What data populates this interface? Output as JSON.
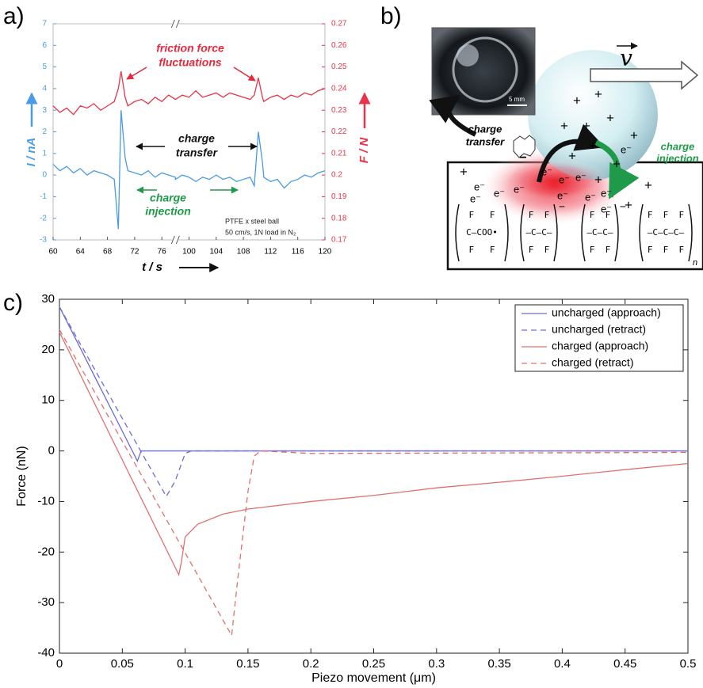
{
  "panel_labels": [
    "a)",
    "b)",
    "c)"
  ],
  "chart_data": [
    {
      "type": "line",
      "x": [
        60,
        61,
        62,
        63,
        64,
        65,
        66,
        67,
        68,
        69,
        69.6,
        70,
        70.6,
        71,
        72,
        73,
        74,
        75,
        76,
        77,
        78,
        98,
        99,
        100,
        101,
        102,
        103,
        104,
        105,
        106,
        107,
        108,
        109,
        109.6,
        110.2,
        110.8,
        111,
        112,
        113,
        114,
        115,
        116,
        117,
        118,
        119,
        120
      ],
      "xlim": [
        60,
        120
      ],
      "x_break": [
        78,
        98
      ],
      "xticks": [
        60,
        64,
        68,
        72,
        76,
        100,
        104,
        108,
        112,
        116,
        120
      ],
      "ylim": [
        -3,
        7
      ],
      "yticks": [
        -3,
        -2,
        -1,
        0,
        1,
        2,
        3,
        4,
        5,
        6,
        7
      ],
      "y2lim": [
        0.17,
        0.27
      ],
      "y2ticks": [
        0.17,
        0.18,
        0.19,
        0.2,
        0.21,
        0.22,
        0.23,
        0.24,
        0.25,
        0.26,
        0.27
      ],
      "xlabel": "t / s",
      "ylabel": "I / nA",
      "y2label": "F / N",
      "series": [
        {
          "axis": "y2",
          "color": "#e8334a",
          "values": [
            0.232,
            0.229,
            0.231,
            0.228,
            0.232,
            0.231,
            0.233,
            0.23,
            0.232,
            0.234,
            0.24,
            0.248,
            0.236,
            0.232,
            0.234,
            0.235,
            0.233,
            0.236,
            0.234,
            0.237,
            0.235,
            0.235,
            0.237,
            0.236,
            0.239,
            0.236,
            0.237,
            0.238,
            0.236,
            0.238,
            0.237,
            0.236,
            0.235,
            0.237,
            0.245,
            0.236,
            0.234,
            0.236,
            0.237,
            0.235,
            0.237,
            0.236,
            0.238,
            0.237,
            0.239,
            0.24
          ]
        },
        {
          "color": "#4a9be6",
          "values": [
            0.5,
            0.2,
            0.4,
            0.1,
            0.3,
            0.0,
            0.2,
            0.1,
            0.0,
            -0.2,
            -2.5,
            3.0,
            0.8,
            0.2,
            0.1,
            0.0,
            0.2,
            -0.1,
            0.1,
            0.0,
            -0.1,
            -0.2,
            0.0,
            -0.1,
            -0.3,
            -0.1,
            -0.2,
            0.0,
            -0.2,
            -0.1,
            -0.3,
            -0.2,
            -0.1,
            -0.5,
            2.0,
            0.6,
            -0.1,
            -0.3,
            -0.2,
            -0.6,
            -0.3,
            -0.2,
            0.0,
            -0.1,
            0.1,
            0.2
          ]
        }
      ],
      "annotations": [
        {
          "text": "friction force",
          "color": "#e8283c"
        },
        {
          "text": "fluctuations",
          "color": "#e8283c"
        },
        {
          "text": "charge",
          "color": "#111111"
        },
        {
          "text": "transfer",
          "color": "#111111"
        },
        {
          "text": "charge",
          "color": "#1f9a48"
        },
        {
          "text": "injection",
          "color": "#1f9a48"
        },
        {
          "text": "PTFE x steel ball",
          "color": "#222222"
        },
        {
          "text": "50 cm/s, 1N load in N₂",
          "color": "#222222"
        }
      ]
    },
    {
      "type": "line",
      "xlim": [
        0,
        0.5
      ],
      "xticks": [
        0,
        0.05,
        0.1,
        0.15,
        0.2,
        0.25,
        0.3,
        0.35,
        0.4,
        0.45,
        0.5
      ],
      "ylim": [
        -40,
        30
      ],
      "yticks": [
        -40,
        -30,
        -20,
        -10,
        0,
        10,
        20,
        30
      ],
      "xlabel": "Piezo movement (μm)",
      "ylabel": "Force (nN)",
      "legend": "upper right",
      "series": [
        {
          "name": "uncharged (approach)",
          "color": "#6c6cd8",
          "linestyle": "solid",
          "x": [
            0,
            0.06,
            0.062,
            0.065,
            0.5
          ],
          "values": [
            28.5,
            -1,
            -2,
            0,
            0
          ]
        },
        {
          "name": "uncharged (retract)",
          "color": "#6c6cd8",
          "linestyle": "dashed",
          "x": [
            0,
            0.085,
            0.092,
            0.1,
            0.105,
            0.5
          ],
          "values": [
            28.5,
            -9,
            -6,
            -0.5,
            0,
            0
          ]
        },
        {
          "name": "charged (approach)",
          "color": "#e07070",
          "linestyle": "solid",
          "x": [
            0,
            0.095,
            0.097,
            0.1,
            0.11,
            0.13,
            0.15,
            0.2,
            0.25,
            0.3,
            0.35,
            0.4,
            0.45,
            0.5
          ],
          "values": [
            23.5,
            -24.5,
            -22,
            -17,
            -14.5,
            -12.5,
            -11.5,
            -10,
            -8.8,
            -7.3,
            -6.2,
            -5,
            -3.7,
            -2.5
          ]
        },
        {
          "name": "charged (retract)",
          "color": "#e07070",
          "linestyle": "dashed",
          "x": [
            0,
            0.137,
            0.142,
            0.15,
            0.155,
            0.16,
            0.2,
            0.5
          ],
          "values": [
            24,
            -36.5,
            -25,
            -8,
            -1,
            0,
            -0.5,
            -0.3
          ]
        }
      ]
    }
  ],
  "diagram_b": {
    "velocity": "v",
    "scale_bar": "5 mm",
    "charge_transfer": [
      "charge",
      "transfer"
    ],
    "charge_injection": [
      "charge",
      "injection"
    ],
    "plus_signs": [
      "+",
      "+",
      "+",
      "+",
      "+",
      "+",
      "+",
      "+",
      "+",
      "+",
      "+",
      "+",
      "+"
    ],
    "electrons": [
      "e⁻",
      "e⁻",
      "e⁻",
      "e⁻",
      "e⁻",
      "e⁻",
      "e⁻",
      "e⁻",
      "e⁻",
      "e⁻",
      "e⁻",
      "e⁻"
    ],
    "transfer_charge": "−",
    "polymer": [
      {
        "rows": [
          "F   F",
          "C—COO•",
          "F   F"
        ]
      },
      {
        "rows": [
          "F  F",
          "—C—C—",
          "F  F"
        ],
        "charge": "−"
      },
      {
        "rows": [
          "F  F",
          "—C—C—",
          "F  F"
        ],
        "charge": "−"
      },
      {
        "rows": [
          "F  F  F",
          "—C—C—C—",
          "F  F  F"
        ],
        "sub": "n"
      }
    ]
  }
}
